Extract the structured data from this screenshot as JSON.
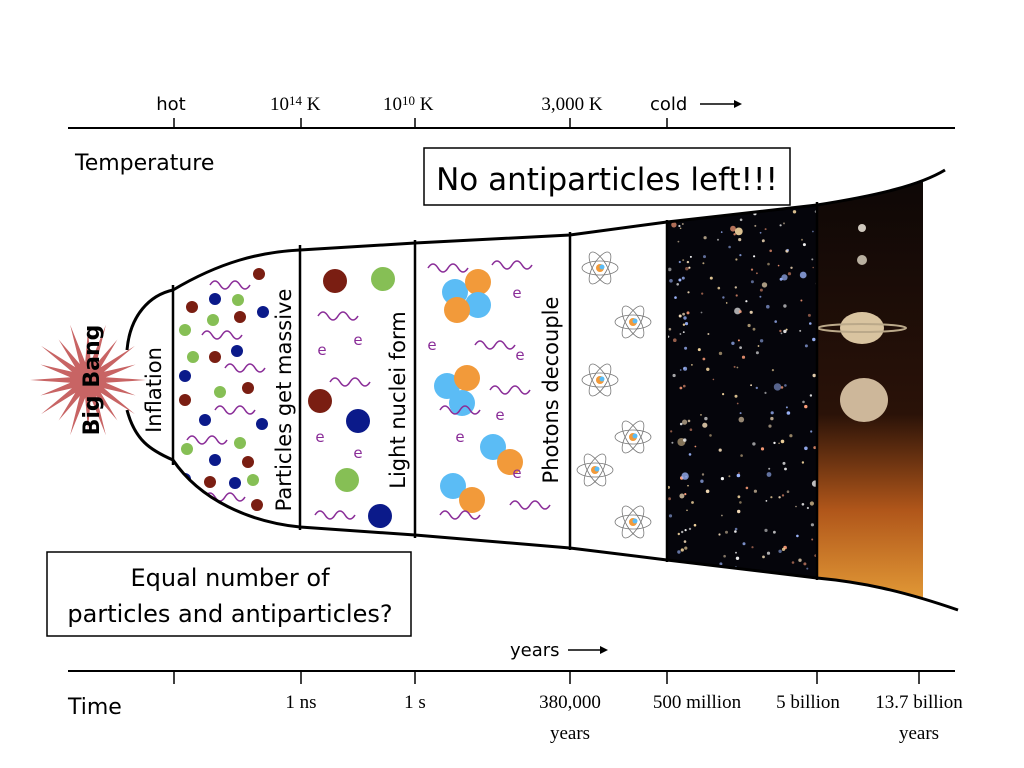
{
  "temperature_axis": {
    "label": "Temperature",
    "ticks": [
      "hot",
      "10",
      "10",
      "3,000 K",
      "cold"
    ],
    "exponents": [
      "14",
      "10"
    ],
    "unit": "K"
  },
  "time_axis": {
    "label": "Time",
    "units_label": "years",
    "ticks": [
      "1 ns",
      "1 s",
      "380,000",
      "500 million",
      "5 billion",
      "13.7 billion"
    ],
    "tick_sublabels": {
      "380000": "years",
      "13.7billion": "years"
    }
  },
  "big_bang_label": "Big Bang",
  "stages": [
    "Inflation",
    "Particles get massive",
    "Light nuclei form",
    "Photons decouple"
  ],
  "electron_symbol": "e",
  "callouts": {
    "top": "No antiparticles left!!!",
    "bottom_line1": "Equal number of",
    "bottom_line2": "particles and antiparticles?"
  },
  "colors": {
    "bang": "#c86464",
    "red_particle": "#7a1e12",
    "green_particle": "#86bf55",
    "blue_particle": "#0b1a8a",
    "photon": "#8a2d98",
    "proton": "#f29a3a",
    "neutron": "#5bbcf5"
  }
}
